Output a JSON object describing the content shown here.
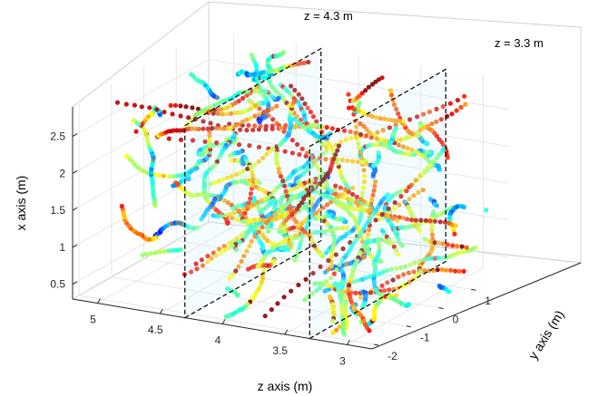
{
  "chart_data": {
    "type": "scatter",
    "dimensions": 3,
    "title": "",
    "xlabel": "z axis (m)",
    "ylabel": "y axis (m)",
    "zlabel": "x axis (m)",
    "z_axis_ticks": [
      "5",
      "4.5",
      "4",
      "3.5",
      "3"
    ],
    "y_axis_ticks": [
      "-2",
      "-1",
      "0",
      "1"
    ],
    "x_axis_ticks": [
      "0.5",
      "1",
      "1.5",
      "2",
      "2.5"
    ],
    "z_axis_range": [
      2.8,
      5.2
    ],
    "y_axis_range": [
      -2.2,
      2.0
    ],
    "x_axis_range": [
      0.3,
      2.9
    ],
    "grid": true,
    "colormap": "jet",
    "planes": [
      {
        "label": "z = 4.3 m",
        "z": 4.3
      },
      {
        "label": "z = 3.3 m",
        "z": 3.3
      }
    ],
    "description_colors": {
      "low": "#00008f",
      "mid": "#00c8ff",
      "high": "#ff2000"
    }
  }
}
